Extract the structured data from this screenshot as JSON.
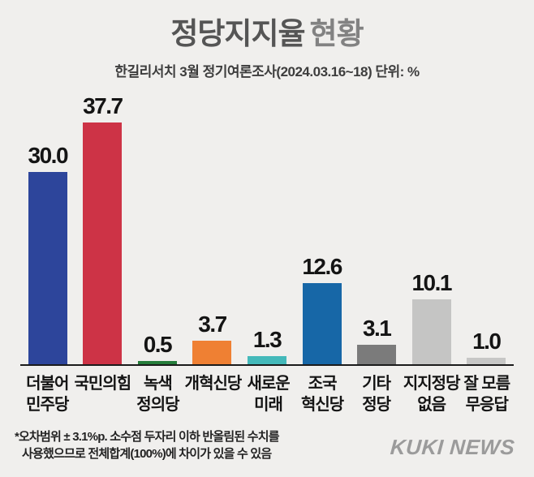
{
  "header": {
    "title_main": "정당지지율",
    "title_sub": "현황",
    "subtitle": "한길리서치 3월 정기여론조사(2024.03.16~18) 단위: %"
  },
  "chart_data": {
    "type": "bar",
    "title": "정당지지율 현황",
    "unit": "%",
    "categories": [
      "더불어 민주당",
      "국민의힘",
      "녹색 정의당",
      "개혁신당",
      "새로운 미래",
      "조국 혁신당",
      "기타 정당",
      "지지정당 없음",
      "잘 모름 무응답"
    ],
    "category_lines": [
      [
        "더불어",
        "민주당"
      ],
      [
        "국민의힘"
      ],
      [
        "녹색",
        "정의당"
      ],
      [
        "개혁신당"
      ],
      [
        "새로운",
        "미래"
      ],
      [
        "조국",
        "혁신당"
      ],
      [
        "기타",
        "정당"
      ],
      [
        "지지정당",
        "없음"
      ],
      [
        "잘 모름",
        "무응답"
      ]
    ],
    "values": [
      30.0,
      37.7,
      0.5,
      3.7,
      1.3,
      12.6,
      3.1,
      10.1,
      1.0
    ],
    "value_labels": [
      "30.0",
      "37.7",
      "0.5",
      "3.7",
      "1.3",
      "12.6",
      "3.1",
      "10.1",
      "1.0"
    ],
    "bar_colors": [
      "#2d459b",
      "#cd3346",
      "#267d3b",
      "#ef8033",
      "#44b9ba",
      "#1767a7",
      "#7b7b7b",
      "#c5c5c4",
      "#c7c7c6"
    ],
    "ylim": [
      0,
      40
    ],
    "grid": false,
    "legend": false,
    "xlabel": "",
    "ylabel": ""
  },
  "footer": {
    "note_line1": "*오차범위 ± 3.1%p. 소수점 두자리 이하 반올림된 수치를",
    "note_line2": "사용했으므로 전체합계(100%)에 차이가 있을 수 있음",
    "logo": "KUKI NEWS"
  },
  "colors": {
    "background": "#f0efed",
    "axis_line": "#1b1b1b",
    "title_main": "#555555",
    "title_sub": "#828282",
    "logo": "#9b9b9b"
  }
}
